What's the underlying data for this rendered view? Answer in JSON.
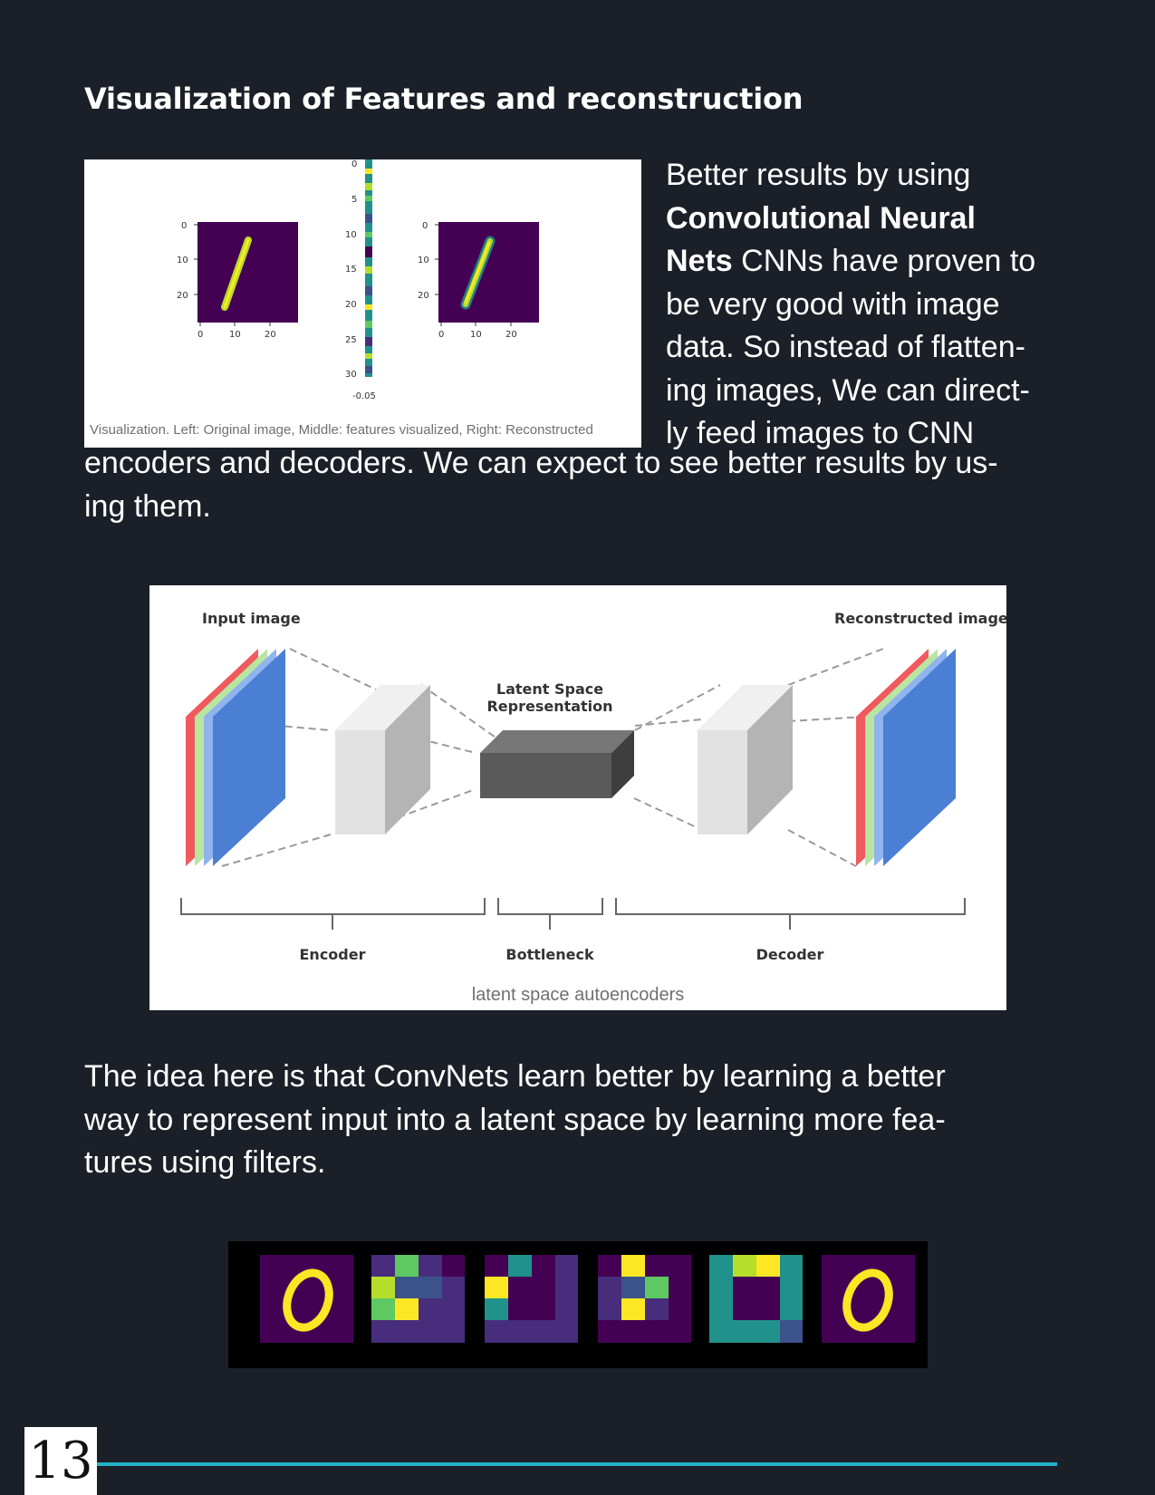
{
  "heading": "Visualization of Features and reconstruction",
  "figure1": {
    "caption": "Visualization. Left: Original image, Middle: features visualized, Right: Reconstructed",
    "left_yticks": [
      "0",
      "10",
      "20"
    ],
    "left_xticks": [
      "0",
      "10",
      "20"
    ],
    "middle_yticks": [
      "0",
      "5",
      "10",
      "15",
      "20",
      "25",
      "30"
    ],
    "middle_xtick": "-0.05",
    "right_yticks": [
      "0",
      "10",
      "20"
    ],
    "right_xticks": [
      "0",
      "10",
      "20"
    ]
  },
  "paragraph1": {
    "side_lines": [
      {
        "text": "Better results by using",
        "bold": false
      },
      {
        "bold_text": "Convolutional Neural"
      },
      {
        "bold_text": "Nets",
        "text": " CNNs have proven to"
      },
      {
        "text": "be very good with image"
      },
      {
        "text": "data. So instead of flatten-"
      },
      {
        "text": "ing images, We can direct-"
      },
      {
        "text": "ly feed images to CNN"
      }
    ],
    "bottom_lines": [
      "encoders and decoders. We can expect to see better results by us-",
      "ing them."
    ]
  },
  "figure2": {
    "input_label": "Input image",
    "reconstructed_label": "Reconstructed image",
    "latent_label_line1": "Latent Space",
    "latent_label_line2": "Representation",
    "encoder_label": "Encoder",
    "bottleneck_label": "Bottleneck",
    "decoder_label": "Decoder",
    "caption": "latent space autoencoders",
    "colors": {
      "red": "#ef5a5e",
      "green": "#b8e6a0",
      "blue_light": "#8fb4ee",
      "blue": "#4a7fd4",
      "box_light": "#e2e2e2",
      "box_dark": "#5a5a5a"
    }
  },
  "paragraph2": {
    "lines": [
      "The idea here is that ConvNets learn better by learning a better",
      "way to represent input into a latent space by learning more fea-",
      "tures using filters."
    ]
  },
  "figure3": {
    "colors": {
      "purple": "#440154",
      "yellow": "#fde725",
      "teal": "#21918c",
      "green": "#5ec962",
      "indigo": "#3b528b",
      "violet": "#472d7b"
    }
  },
  "footer": {
    "page_number": "13",
    "rule_color": "#1fb3c4"
  }
}
